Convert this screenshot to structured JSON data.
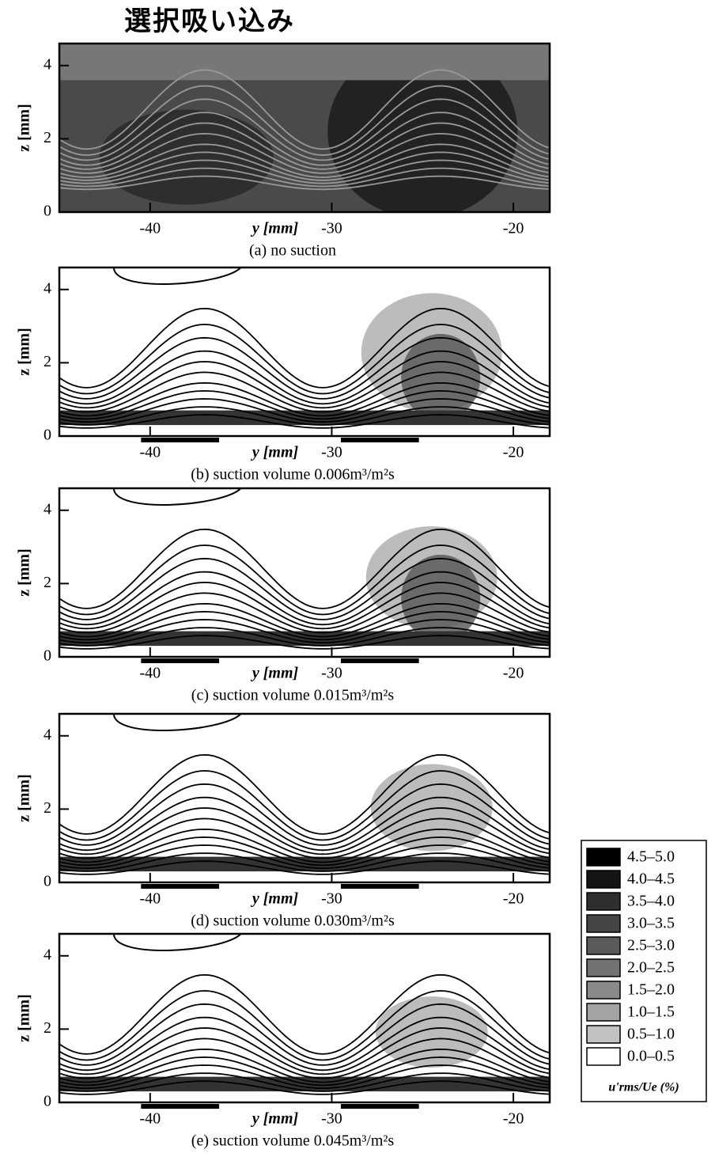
{
  "header": {
    "title": "選択吸い込み"
  },
  "chart_data": [
    {
      "type": "contour",
      "caption": "(a) no suction",
      "x_label": "y [mm]",
      "y_label": "z [mm]",
      "xlim": [
        -45,
        -18
      ],
      "ylim": [
        0,
        4.6
      ],
      "xticks": [
        -40,
        -30,
        -20
      ],
      "yticks": [
        0,
        2,
        4
      ],
      "shading": "dark"
    },
    {
      "type": "contour",
      "caption": "(b) suction volume 0.006m³/m²s",
      "x_label": "y [mm]",
      "y_label": "z [mm]",
      "xlim": [
        -45,
        -18
      ],
      "ylim": [
        0,
        4.6
      ],
      "xticks": [
        -40,
        -30,
        -20
      ],
      "yticks": [
        0,
        2,
        4
      ],
      "shading": "light",
      "suction_regions": [
        [
          -40.5,
          -36.2
        ],
        [
          -29.5,
          -25.2
        ]
      ]
    },
    {
      "type": "contour",
      "caption": "(c) suction volume 0.015m³/m²s",
      "x_label": "y [mm]",
      "y_label": "z [mm]",
      "xlim": [
        -45,
        -18
      ],
      "ylim": [
        0,
        4.6
      ],
      "xticks": [
        -40,
        -30,
        -20
      ],
      "yticks": [
        0,
        2,
        4
      ],
      "shading": "light",
      "suction_regions": [
        [
          -40.5,
          -36.2
        ],
        [
          -29.5,
          -25.2
        ]
      ]
    },
    {
      "type": "contour",
      "caption": "(d) suction volume 0.030m³/m²s",
      "x_label": "y [mm]",
      "y_label": "z [mm]",
      "xlim": [
        -45,
        -18
      ],
      "ylim": [
        0,
        4.6
      ],
      "xticks": [
        -40,
        -30,
        -20
      ],
      "yticks": [
        0,
        2,
        4
      ],
      "shading": "light",
      "suction_regions": [
        [
          -40.5,
          -36.2
        ],
        [
          -29.5,
          -25.2
        ]
      ]
    },
    {
      "type": "contour",
      "caption": "(e) suction volume 0.045m³/m²s",
      "x_label": "y [mm]",
      "y_label": "z [mm]",
      "xlim": [
        -45,
        -18
      ],
      "ylim": [
        0,
        4.6
      ],
      "xticks": [
        -40,
        -30,
        -20
      ],
      "yticks": [
        0,
        2,
        4
      ],
      "shading": "light",
      "suction_regions": [
        [
          -40.5,
          -36.2
        ],
        [
          -29.5,
          -25.2
        ]
      ]
    }
  ],
  "legend": {
    "title": "u'rms/Ue (%)",
    "levels": [
      {
        "label": "4.5–5.0",
        "color": "#000000"
      },
      {
        "label": "4.0–4.5",
        "color": "#141414"
      },
      {
        "label": "3.5–4.0",
        "color": "#2e2e2e"
      },
      {
        "label": "3.0–3.5",
        "color": "#444444"
      },
      {
        "label": "2.5–3.0",
        "color": "#5a5a5a"
      },
      {
        "label": "2.0–2.5",
        "color": "#727272"
      },
      {
        "label": "1.5–2.0",
        "color": "#8a8a8a"
      },
      {
        "label": "1.0–1.5",
        "color": "#a4a4a4"
      },
      {
        "label": "0.5–1.0",
        "color": "#c2c2c2"
      },
      {
        "label": "0.0–0.5",
        "color": "#ffffff"
      }
    ]
  }
}
